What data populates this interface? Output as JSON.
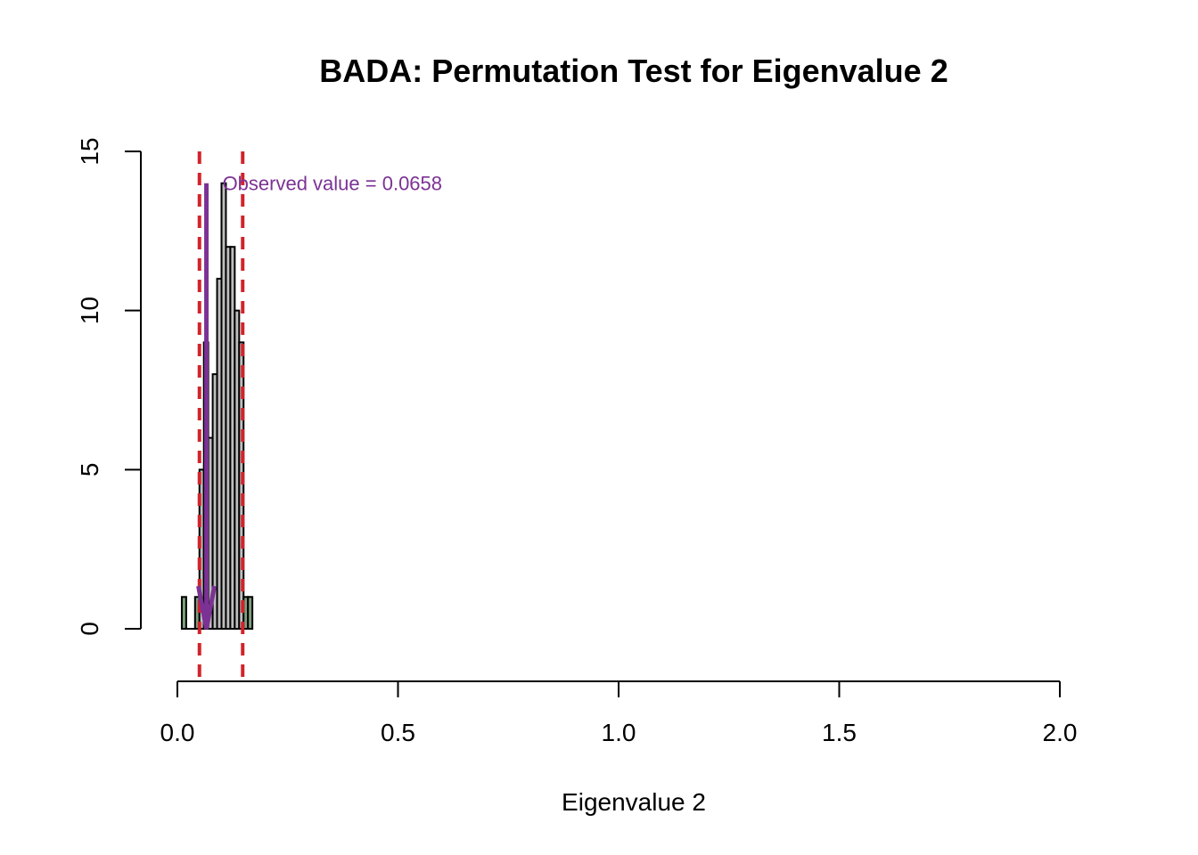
{
  "chart_data": {
    "type": "bar",
    "title": "BADA: Permutation Test for Eigenvalue 2",
    "xlabel": "Eigenvalue 2",
    "ylabel": "",
    "xlim": [
      0,
      2
    ],
    "ylim": [
      0,
      15
    ],
    "x_ticks": [
      0.0,
      0.5,
      1.0,
      1.5,
      2.0
    ],
    "x_tick_labels": [
      "0.0",
      "0.5",
      "1.0",
      "1.5",
      "2.0"
    ],
    "y_ticks": [
      0,
      5,
      10,
      15
    ],
    "y_tick_labels": [
      "0",
      "5",
      "10",
      "15"
    ],
    "bin_width": 0.01,
    "bins": [
      {
        "start": 0.01,
        "count": 1,
        "tail": true
      },
      {
        "start": 0.02,
        "count": 0,
        "tail": true
      },
      {
        "start": 0.03,
        "count": 0,
        "tail": true
      },
      {
        "start": 0.04,
        "count": 1,
        "tail": true
      },
      {
        "start": 0.05,
        "count": 5,
        "tail": false
      },
      {
        "start": 0.06,
        "count": 9,
        "tail": false
      },
      {
        "start": 0.07,
        "count": 6,
        "tail": false
      },
      {
        "start": 0.08,
        "count": 8,
        "tail": false
      },
      {
        "start": 0.09,
        "count": 11,
        "tail": false
      },
      {
        "start": 0.1,
        "count": 14,
        "tail": false
      },
      {
        "start": 0.11,
        "count": 12,
        "tail": false
      },
      {
        "start": 0.12,
        "count": 12,
        "tail": false
      },
      {
        "start": 0.13,
        "count": 10,
        "tail": false
      },
      {
        "start": 0.14,
        "count": 9,
        "tail": false
      },
      {
        "start": 0.15,
        "count": 1,
        "tail": true
      },
      {
        "start": 0.16,
        "count": 1,
        "tail": true
      }
    ],
    "critical_values": [
      0.05,
      0.148
    ],
    "observed_value": 0.0658,
    "observed_label": "Observed value = 0.0658",
    "colors": {
      "bar_fill": "#bebebe",
      "tail_fill": "#7fa07f",
      "critical_line": "#d2232a",
      "observed": "#7b3294",
      "axis": "#000000"
    }
  }
}
